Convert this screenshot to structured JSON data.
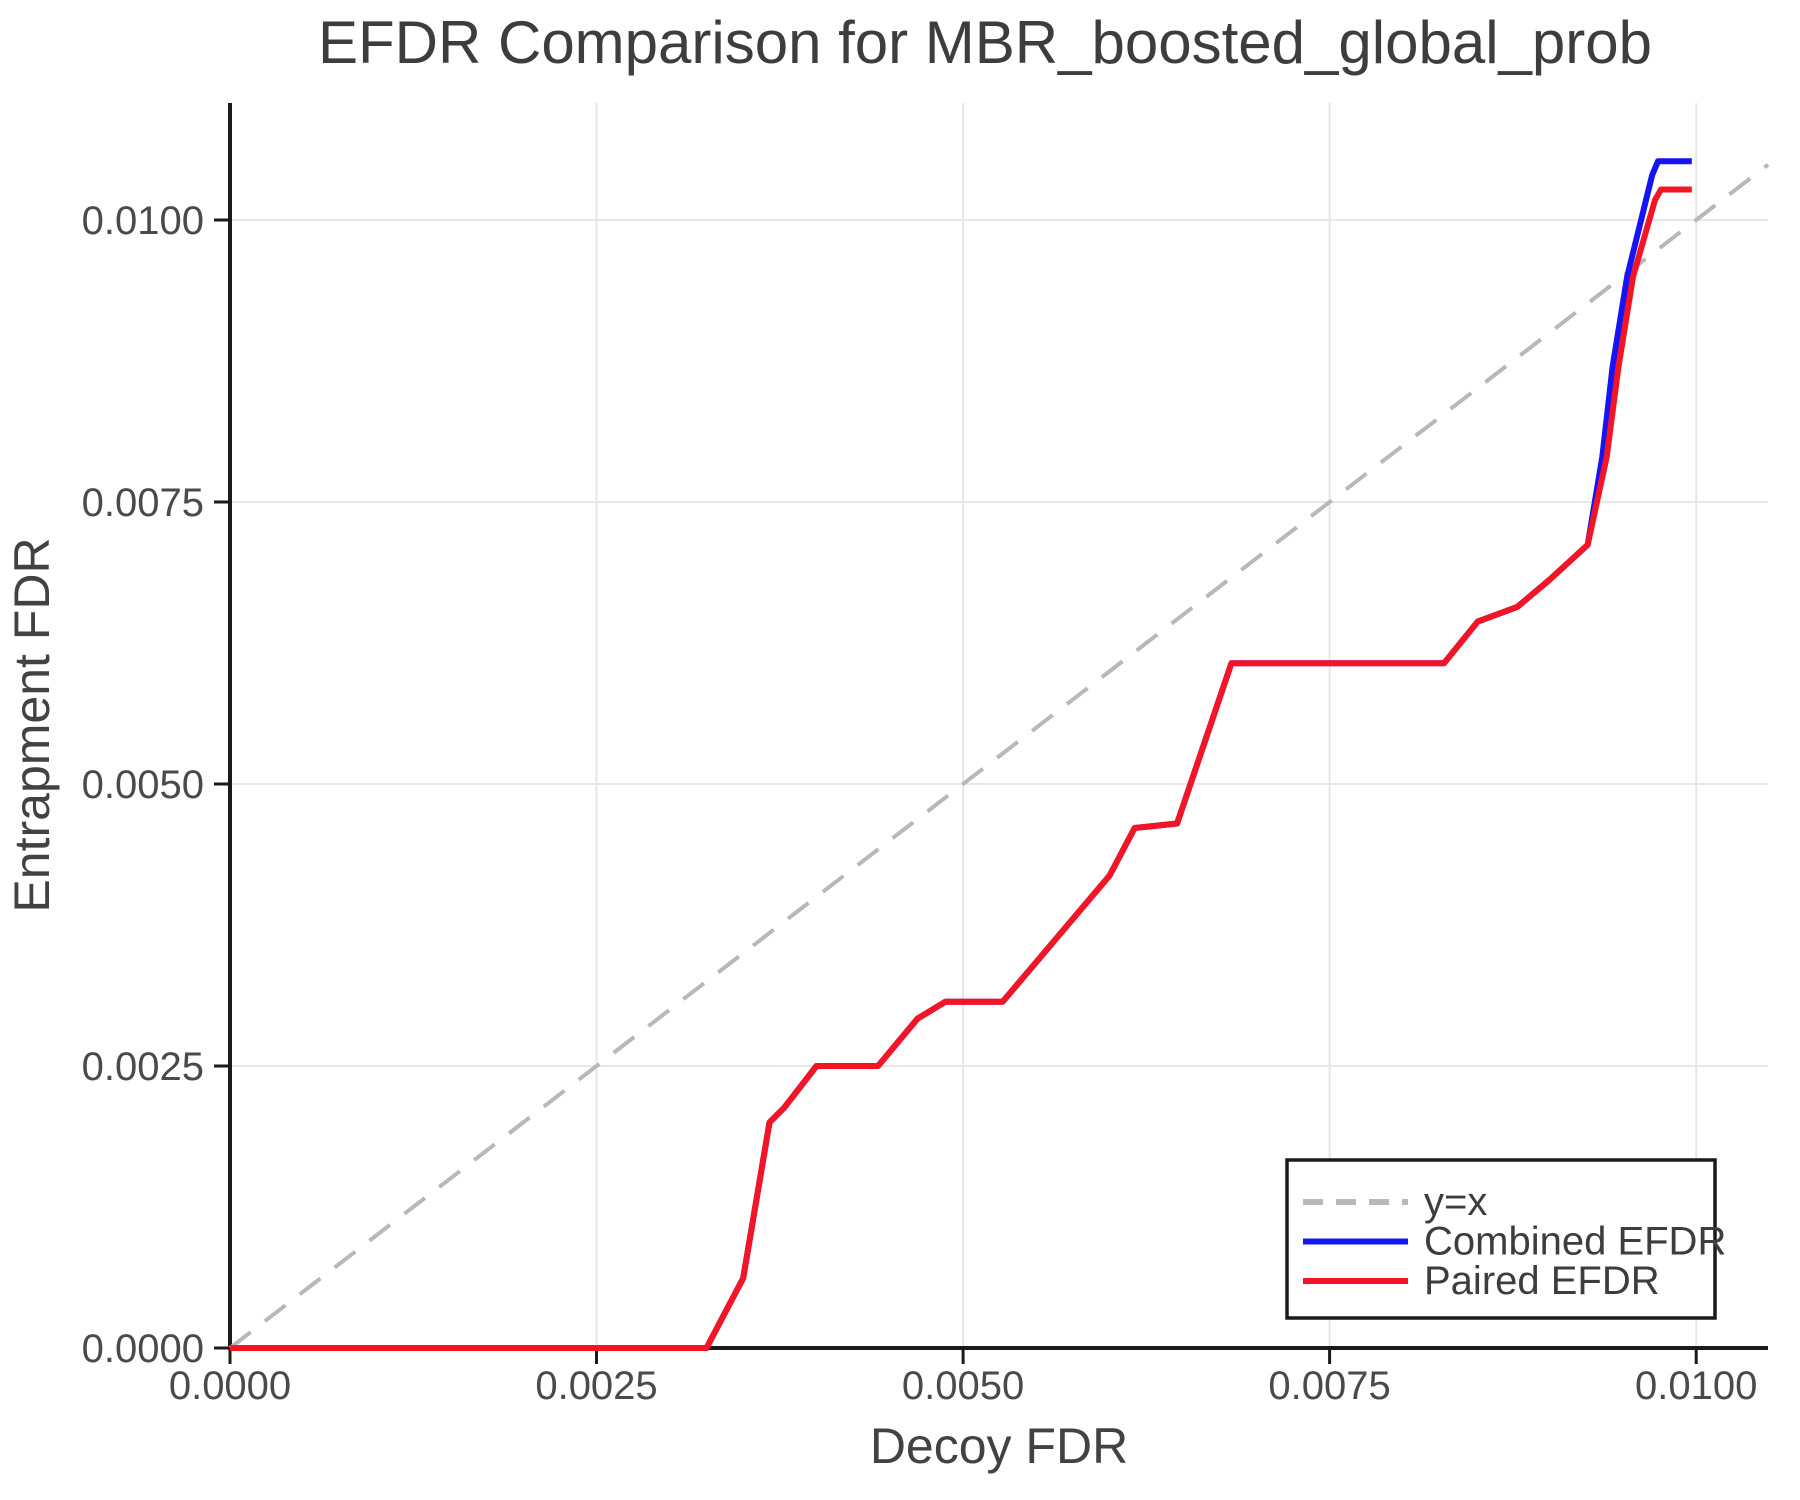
{
  "figure": {
    "title": "EFDR Comparison for MBR_boosted_global_prob",
    "xlabel": "Decoy FDR",
    "ylabel": "Entrapment FDR"
  },
  "chart_data": {
    "type": "line",
    "title": "EFDR Comparison for MBR_boosted_global_prob",
    "xlabel": "Decoy FDR",
    "ylabel": "Entrapment FDR",
    "xlim": [
      0,
      0.01049
    ],
    "ylim": [
      0,
      0.011037
    ],
    "grid": true,
    "grid_color": "#e7e7e7",
    "spine_color": "#1a1a1a",
    "legend_position": "lower right",
    "x_ticks": {
      "values": [
        0,
        0.0025,
        0.005,
        0.0075,
        0.01
      ],
      "labels": [
        "0.0000",
        "0.0025",
        "0.0050",
        "0.0075",
        "0.0100"
      ]
    },
    "y_ticks": {
      "values": [
        0,
        0.0025,
        0.005,
        0.0075,
        0.01
      ],
      "labels": [
        "0.0000",
        "0.0025",
        "0.0050",
        "0.0075",
        "0.0100"
      ]
    },
    "series": [
      {
        "name": "y=x",
        "style": "dashed",
        "color": "#b8b8b8",
        "width": 4,
        "points": [
          [
            0,
            0
          ],
          [
            0.01049,
            0.01049
          ]
        ]
      },
      {
        "name": "Combined EFDR",
        "style": "solid",
        "color": "#1414f5",
        "width": 6,
        "points": [
          [
            0.0,
            0.0
          ],
          [
            0.00325,
            0.0
          ],
          [
            0.0035,
            0.00062
          ],
          [
            0.00368,
            0.002
          ],
          [
            0.00378,
            0.00213
          ],
          [
            0.004,
            0.0025
          ],
          [
            0.00442,
            0.0025
          ],
          [
            0.00469,
            0.00292
          ],
          [
            0.00488,
            0.00307
          ],
          [
            0.00527,
            0.00307
          ],
          [
            0.006,
            0.00419
          ],
          [
            0.00617,
            0.00461
          ],
          [
            0.00646,
            0.00465
          ],
          [
            0.00683,
            0.00607
          ],
          [
            0.00828,
            0.00607
          ],
          [
            0.00851,
            0.00644
          ],
          [
            0.00878,
            0.00657
          ],
          [
            0.009,
            0.00681
          ],
          [
            0.00926,
            0.00712
          ],
          [
            0.00936,
            0.0079
          ],
          [
            0.00943,
            0.0087
          ],
          [
            0.00953,
            0.0095
          ],
          [
            0.0097,
            0.0104
          ],
          [
            0.00974,
            0.01052
          ],
          [
            0.00997,
            0.01052
          ]
        ]
      },
      {
        "name": "Paired EFDR",
        "style": "solid",
        "color": "#f51423",
        "width": 6,
        "points": [
          [
            0.0,
            0.0
          ],
          [
            0.00325,
            0.0
          ],
          [
            0.0035,
            0.00062
          ],
          [
            0.00368,
            0.002
          ],
          [
            0.00378,
            0.00213
          ],
          [
            0.004,
            0.0025
          ],
          [
            0.00442,
            0.0025
          ],
          [
            0.00469,
            0.00292
          ],
          [
            0.00488,
            0.00307
          ],
          [
            0.00527,
            0.00307
          ],
          [
            0.006,
            0.00419
          ],
          [
            0.00617,
            0.00461
          ],
          [
            0.00646,
            0.00465
          ],
          [
            0.00683,
            0.00607
          ],
          [
            0.00828,
            0.00607
          ],
          [
            0.00851,
            0.00644
          ],
          [
            0.00878,
            0.00657
          ],
          [
            0.009,
            0.00681
          ],
          [
            0.00926,
            0.00712
          ],
          [
            0.00939,
            0.0079
          ],
          [
            0.00947,
            0.0087
          ],
          [
            0.00957,
            0.0095
          ],
          [
            0.00972,
            0.01018
          ],
          [
            0.00976,
            0.01027
          ],
          [
            0.00997,
            0.01027
          ]
        ]
      }
    ],
    "legend": {
      "entries": [
        {
          "label": "y=x",
          "color": "#b8b8b8",
          "style": "dashed"
        },
        {
          "label": "Combined EFDR",
          "color": "#1414f5",
          "style": "solid"
        },
        {
          "label": "Paired EFDR",
          "color": "#f51423",
          "style": "solid"
        }
      ]
    }
  }
}
